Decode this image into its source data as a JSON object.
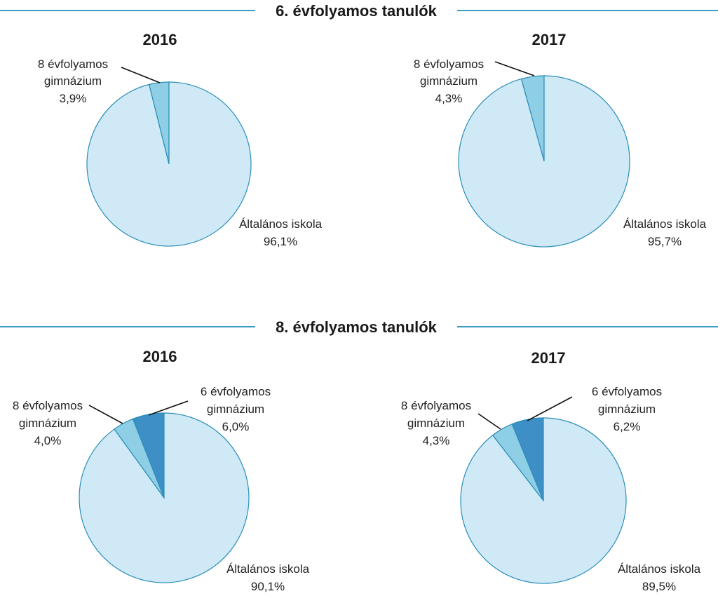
{
  "sections": [
    {
      "title": "6. évfolyamos tanulók"
    },
    {
      "title": "8. évfolyamos tanulók"
    }
  ],
  "colors": {
    "rule": "#3a9ec2",
    "general": "#cfe9f6",
    "gym8": "#8fcfe5",
    "gym6": "#3e8fc6",
    "outline": "#2a8db8"
  },
  "chart_data": [
    {
      "type": "pie",
      "section": "6. évfolyamos tanulók",
      "title": "2016",
      "slices": [
        {
          "label": [
            "8 évfolyamos",
            "gimnázium"
          ],
          "value": 3.9,
          "value_label": "3,9%",
          "color": "#8fcfe5"
        },
        {
          "label": [
            "Általános iskola"
          ],
          "value": 96.1,
          "value_label": "96,1%",
          "color": "#cfe9f6"
        }
      ]
    },
    {
      "type": "pie",
      "section": "6. évfolyamos tanulók",
      "title": "2017",
      "slices": [
        {
          "label": [
            "8 évfolyamos",
            "gimnázium"
          ],
          "value": 4.3,
          "value_label": "4,3%",
          "color": "#8fcfe5"
        },
        {
          "label": [
            "Általános iskola"
          ],
          "value": 95.7,
          "value_label": "95,7%",
          "color": "#cfe9f6"
        }
      ]
    },
    {
      "type": "pie",
      "section": "8. évfolyamos tanulók",
      "title": "2016",
      "slices": [
        {
          "label": [
            "6 évfolyamos",
            "gimnázium"
          ],
          "value": 6.0,
          "value_label": "6,0%",
          "color": "#3e8fc6"
        },
        {
          "label": [
            "8 évfolyamos",
            "gimnázium"
          ],
          "value": 4.0,
          "value_label": "4,0%",
          "color": "#8fcfe5"
        },
        {
          "label": [
            "Általános iskola"
          ],
          "value": 90.1,
          "value_label": "90,1%",
          "color": "#cfe9f6"
        }
      ]
    },
    {
      "type": "pie",
      "section": "8. évfolyamos tanulók",
      "title": "2017",
      "slices": [
        {
          "label": [
            "6 évfolyamos",
            "gimnázium"
          ],
          "value": 6.2,
          "value_label": "6,2%",
          "color": "#3e8fc6"
        },
        {
          "label": [
            "8 évfolyamos",
            "gimnázium"
          ],
          "value": 4.3,
          "value_label": "4,3%",
          "color": "#8fcfe5"
        },
        {
          "label": [
            "Általános iskola"
          ],
          "value": 89.5,
          "value_label": "89,5%",
          "color": "#cfe9f6"
        }
      ]
    }
  ]
}
